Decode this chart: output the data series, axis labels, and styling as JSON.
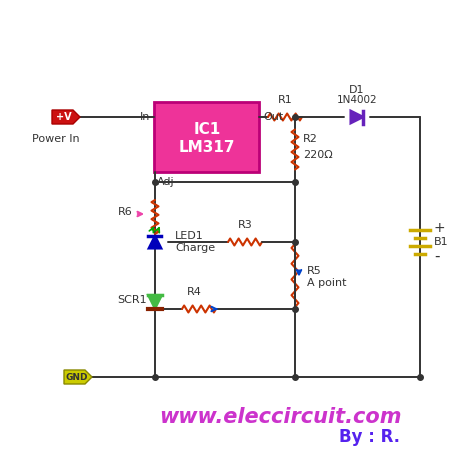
{
  "bg_color": "#ffffff",
  "title": "www.eleccircuit.com",
  "subtitle": "By : R.",
  "title_color": "#cc33cc",
  "subtitle_color": "#5522ee",
  "wire_color": "#333333",
  "ic_color": "#ee3399",
  "ic_text_color": "white",
  "ic_label": "IC1\nLM317",
  "resistor_color": "#cc3300",
  "diode_color": "#6622bb",
  "led_body_color": "#0000bb",
  "led_arrow_color": "#00aa00",
  "scr_color": "#44bb44",
  "scr_gate_color": "#882200",
  "battery_color": "#ccaa00",
  "power_fill": "#cc1111",
  "power_outline": "#aa0000",
  "gnd_fill": "#cccc00",
  "gnd_text": "#333333",
  "r6_arrow_color": "#ee44aa",
  "r4_arrow_color": "#0044cc",
  "r5_arrow_color": "#0044cc"
}
